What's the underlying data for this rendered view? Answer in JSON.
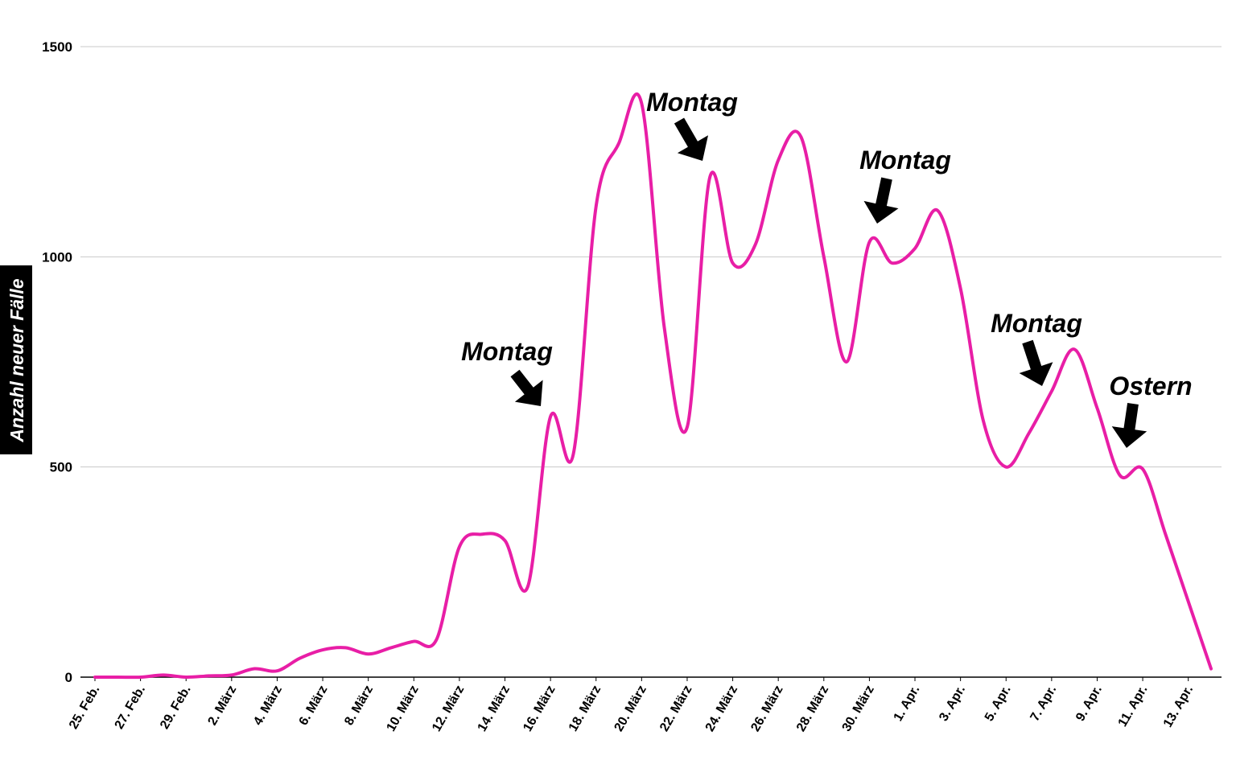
{
  "chart_data": {
    "type": "line",
    "title": "",
    "xlabel": "",
    "ylabel": "Anzahl neuer Fälle",
    "ylim": [
      0,
      1500
    ],
    "yticks": [
      0,
      500,
      1000,
      1500
    ],
    "grid": true,
    "line_color": "#e81ea6",
    "x_tick_labels": [
      "25. Feb.",
      "27. Feb.",
      "29. Feb.",
      "2. März",
      "4. März",
      "6. März",
      "8. März",
      "10. März",
      "12. März",
      "14. März",
      "16. März",
      "18. März",
      "20. März",
      "22. März",
      "24. März",
      "26. März",
      "28. März",
      "30. März",
      "1. Apr.",
      "3. Apr.",
      "5. Apr.",
      "7. Apr.",
      "9. Apr.",
      "11. Apr.",
      "13. Apr."
    ],
    "x": [
      "25. Feb.",
      "26. Feb.",
      "27. Feb.",
      "28. Feb.",
      "29. Feb.",
      "1. März",
      "2. März",
      "3. März",
      "4. März",
      "5. März",
      "6. März",
      "7. März",
      "8. März",
      "9. März",
      "10. März",
      "11. März",
      "12. März",
      "13. März",
      "14. März",
      "15. März",
      "16. März",
      "17. März",
      "18. März",
      "19. März",
      "20. März",
      "21. März",
      "22. März",
      "23. März",
      "24. März",
      "25. März",
      "26. März",
      "27. März",
      "28. März",
      "29. März",
      "30. März",
      "31. März",
      "1. Apr.",
      "2. Apr.",
      "3. Apr.",
      "4. Apr.",
      "5. Apr.",
      "6. Apr.",
      "7. Apr.",
      "8. Apr.",
      "9. Apr.",
      "10. Apr.",
      "11. Apr.",
      "12. Apr.",
      "13. Apr.",
      "14. Apr."
    ],
    "series": [
      {
        "values": [
          0,
          0,
          0,
          5,
          0,
          3,
          5,
          20,
          15,
          45,
          65,
          70,
          55,
          70,
          85,
          90,
          310,
          340,
          325,
          215,
          620,
          530,
          1120,
          1270,
          1365,
          830,
          595,
          1190,
          985,
          1030,
          1230,
          1285,
          1000,
          750,
          1035,
          985,
          1020,
          1110,
          925,
          610,
          500,
          580,
          680,
          780,
          640,
          480,
          495,
          340,
          180,
          20
        ]
      }
    ],
    "annotations": [
      {
        "text": "Montag",
        "x": "16. März"
      },
      {
        "text": "Montag",
        "x": "23. März"
      },
      {
        "text": "Montag",
        "x": "30. März"
      },
      {
        "text": "Montag",
        "x": "6. Apr."
      },
      {
        "text": "Ostern",
        "x": "10. Apr."
      }
    ]
  }
}
